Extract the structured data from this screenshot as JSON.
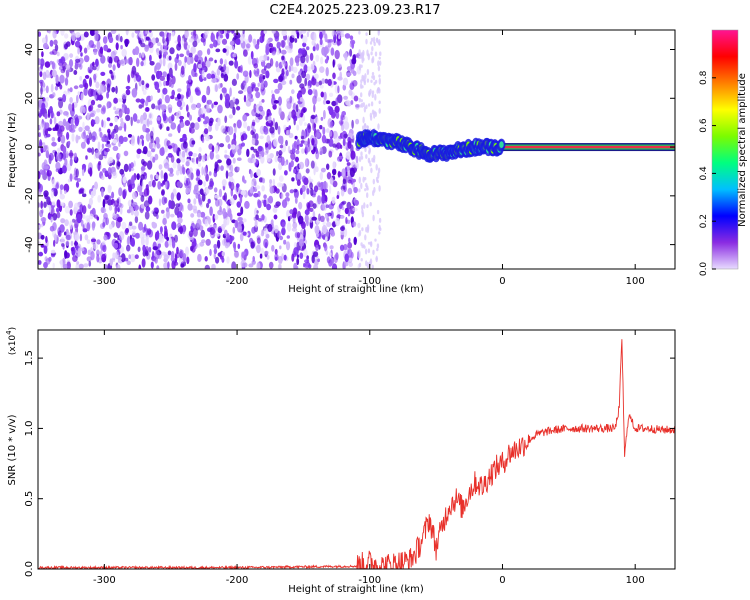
{
  "title": "C2E4.2025.223.09.23.R17",
  "chart_data": [
    {
      "type": "heatmap",
      "xlabel": "Height of straight line (km)",
      "ylabel": "Frequency (Hz)",
      "xlim": [
        -350,
        130
      ],
      "ylim": [
        -50,
        48
      ],
      "x_ticks": [
        -300,
        -200,
        -100,
        0,
        100
      ],
      "y_ticks": [
        -40,
        -20,
        0,
        20,
        40
      ],
      "noise_region_x": [
        -350,
        -108
      ],
      "sparse_region_x": [
        -108,
        -92
      ],
      "signal_points": [
        {
          "x": -108,
          "y": 3
        },
        {
          "x": -100,
          "y": 4
        },
        {
          "x": -90,
          "y": 3
        },
        {
          "x": -80,
          "y": 2
        },
        {
          "x": -70,
          "y": 0
        },
        {
          "x": -60,
          "y": -2
        },
        {
          "x": -50,
          "y": -3
        },
        {
          "x": -40,
          "y": -2
        },
        {
          "x": -30,
          "y": -1
        },
        {
          "x": -20,
          "y": 0
        },
        {
          "x": -10,
          "y": 0
        },
        {
          "x": 0,
          "y": 0
        },
        {
          "x": 130,
          "y": 0
        }
      ],
      "colorbar": {
        "label": "Normalized spectral amplitude",
        "range": [
          0,
          1
        ],
        "ticks": [
          "0.0",
          "0.2",
          "0.4",
          "0.6",
          "0.8"
        ],
        "colors": [
          "#e8dcff",
          "#8a2be2",
          "#0000ff",
          "#00bfff",
          "#00ff7f",
          "#7cfc00",
          "#ffff00",
          "#ff7f00",
          "#ff0000",
          "#ff1493"
        ]
      }
    },
    {
      "type": "line",
      "xlabel": "Height of straight line (km)",
      "ylabel": "SNR (10 * v/v)",
      "y_multiplier_label": "(x10",
      "y_multiplier_exp": "4",
      "y_multiplier_close": ")",
      "xlim": [
        -350,
        130
      ],
      "ylim": [
        0,
        1.7
      ],
      "x_ticks": [
        -300,
        -200,
        -100,
        0,
        100
      ],
      "y_ticks": [
        "0.0",
        "0.5",
        "1.0",
        "1.5"
      ],
      "series": [
        {
          "color": "#e8302a",
          "x": [
            -350,
            -200,
            -110,
            -100,
            -90,
            -80,
            -70,
            -65,
            -60,
            -55,
            -50,
            -45,
            -40,
            -35,
            -30,
            -25,
            -20,
            -15,
            -10,
            -5,
            0,
            5,
            10,
            15,
            20,
            25,
            30,
            40,
            50,
            60,
            70,
            80,
            85,
            88,
            90,
            92,
            95,
            100,
            110,
            120,
            130
          ],
          "values": [
            0.01,
            0.01,
            0.02,
            0.05,
            0.02,
            0.04,
            0.06,
            0.12,
            0.22,
            0.36,
            0.15,
            0.32,
            0.45,
            0.5,
            0.43,
            0.55,
            0.62,
            0.58,
            0.66,
            0.72,
            0.75,
            0.82,
            0.85,
            0.88,
            0.92,
            0.95,
            0.97,
            0.99,
            1.0,
            1.0,
            1.0,
            1.0,
            1.0,
            1.15,
            1.65,
            0.8,
            1.1,
            1.0,
            1.0,
            0.99,
            0.99
          ]
        }
      ]
    }
  ]
}
